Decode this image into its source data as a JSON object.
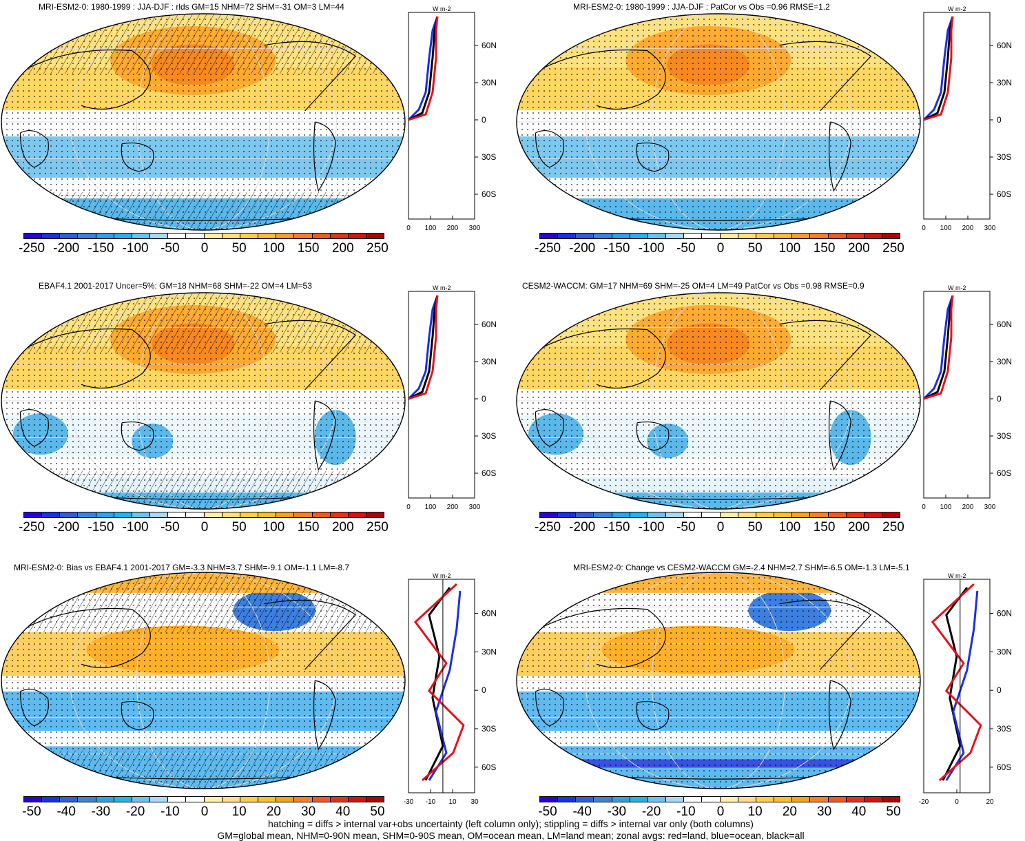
{
  "panels": [
    {
      "title": "MRI-ESM2-0: 1980-1999 : JJA-DJF : rlds GM=15 NHM=72 SHM=-31 OM=3 LM=44",
      "colorbar": [
        "-250",
        "-200",
        "-150",
        "-100",
        "-50",
        "0",
        "50",
        "100",
        "150",
        "200",
        "250"
      ],
      "zonal_ticks": [
        "0",
        "100",
        "200",
        "300"
      ],
      "zonal_unit": "W m-2"
    },
    {
      "title": "MRI-ESM2-0: 1980-1999 : JJA-DJF : PatCor vs Obs =0.96 RMSE=1.2",
      "colorbar": [
        "-250",
        "-200",
        "-150",
        "-100",
        "-50",
        "0",
        "50",
        "100",
        "150",
        "200",
        "250"
      ],
      "zonal_ticks": [
        "0",
        "100",
        "200",
        "300"
      ],
      "zonal_unit": "W m-2"
    },
    {
      "title": "EBAF4.1 2001-2017 Uncer=5%: GM=18 NHM=68 SHM=-22 OM=4 LM=53",
      "colorbar": [
        "-250",
        "-200",
        "-150",
        "-100",
        "-50",
        "0",
        "50",
        "100",
        "150",
        "200",
        "250"
      ],
      "zonal_ticks": [
        "0",
        "100",
        "200",
        "300"
      ],
      "zonal_unit": "W m-2"
    },
    {
      "title": "CESM2-WACCM: GM=17 NHM=69 SHM=-25 OM=4 LM=49 PatCor vs Obs =0.98 RMSE=0.9",
      "colorbar": [
        "-250",
        "-200",
        "-150",
        "-100",
        "-50",
        "0",
        "50",
        "100",
        "150",
        "200",
        "250"
      ],
      "zonal_ticks": [
        "0",
        "100",
        "200",
        "300"
      ],
      "zonal_unit": "W m-2"
    },
    {
      "title": "MRI-ESM2-0: Bias vs EBAF4.1 2001-2017 GM=-3.3 NHM=3.7 SHM=-9.1 OM=-1.1 LM=-8.7",
      "colorbar": [
        "-50",
        "-40",
        "-30",
        "-20",
        "-10",
        "0",
        "10",
        "20",
        "30",
        "40",
        "50"
      ],
      "zonal_ticks": [
        "-30",
        "-10",
        "10",
        "30"
      ],
      "zonal_unit": "W m-2"
    },
    {
      "title": "MRI-ESM2-0: Change vs CESM2-WACCM GM=-2.4 NHM=2.7 SHM=-6.5 OM=-1.3 LM=-5.1",
      "colorbar": [
        "-50",
        "-40",
        "-30",
        "-20",
        "-10",
        "0",
        "10",
        "20",
        "30",
        "40",
        "50"
      ],
      "zonal_ticks": [
        "-20",
        "0",
        "20"
      ],
      "zonal_unit": "W m-2"
    }
  ],
  "lat_labels": [
    "60N",
    "30N",
    "0",
    "30S",
    "60S"
  ],
  "colorbar_colors": [
    "#2a00d8",
    "#1a2fe6",
    "#2f5fd8",
    "#3b83d9",
    "#2aa3e8",
    "#1eb4f0",
    "#66c6ee",
    "#a9d9f3",
    "#ffffff",
    "#ffffff",
    "#fff2a6",
    "#ffe07a",
    "#ffcf44",
    "#ffbf2a",
    "#ffa01a",
    "#ff801a",
    "#f55a14",
    "#e8320f",
    "#d91010",
    "#b30000"
  ],
  "footer": {
    "line1": "hatching = diffs > internal var+obs uncertainty (left column only); stippling = diffs > internal var only (both columns)",
    "line2": "GM=global mean, NHM=0-90N mean, SHM=0-90S mean, OM=ocean mean, LM=land mean; zonal avgs: red=land, blue=ocean, black=all"
  },
  "colors": {
    "land": "#e8101a",
    "ocean": "#1a2ee8",
    "all": "#000000"
  }
}
